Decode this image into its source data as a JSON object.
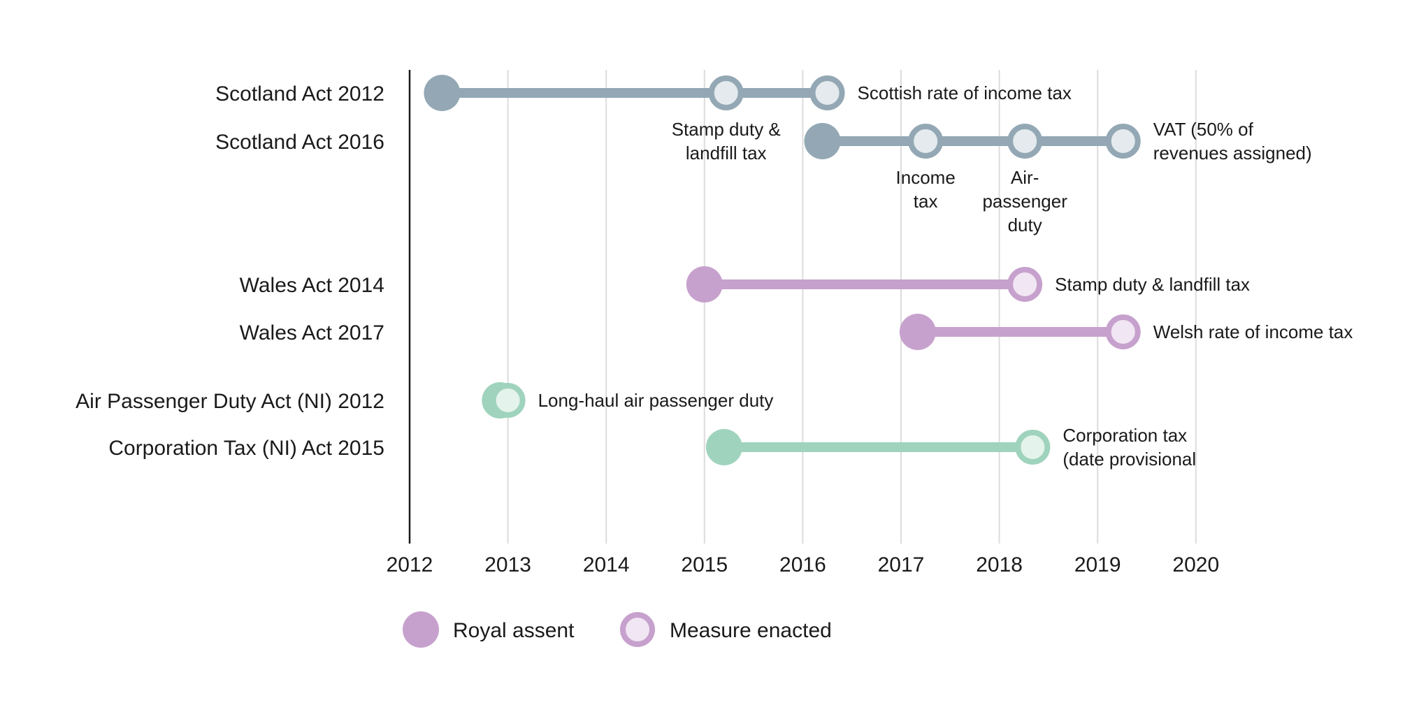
{
  "chart_data": {
    "type": "timeline",
    "title": "",
    "xlabel": "",
    "ylabel": "",
    "xlim": [
      2012,
      2020.5
    ],
    "x_ticks": [
      "2012",
      "2013",
      "2014",
      "2015",
      "2016",
      "2017",
      "2018",
      "2019",
      "2020"
    ],
    "grid": true,
    "colors": {
      "scotland": "#93a8b4",
      "scotland_fill": "#e4eaed",
      "wales": "#c7a1cd",
      "wales_fill": "#f1e6f3",
      "ni": "#9fd3bd",
      "ni_fill": "#e4f3ec",
      "axis": "#1a1a1a",
      "grid": "#dcdcdc"
    },
    "series": [
      {
        "name": "Scotland Act 2012",
        "group": "scotland",
        "royal_assent": 2012.33,
        "measures": [
          {
            "date": 2015.22,
            "label": [
              "Stamp duty &",
              "landfill tax"
            ],
            "label_pos": "below"
          },
          {
            "date": 2016.25,
            "label": [
              "Scottish rate of income tax"
            ],
            "label_pos": "right"
          }
        ]
      },
      {
        "name": "Scotland Act 2016",
        "group": "scotland",
        "royal_assent": 2016.2,
        "measures": [
          {
            "date": 2017.25,
            "label": [
              "Income",
              "tax"
            ],
            "label_pos": "below"
          },
          {
            "date": 2018.26,
            "label": [
              "Air-",
              "passenger",
              "duty"
            ],
            "label_pos": "below"
          },
          {
            "date": 2019.26,
            "label": [
              "VAT (50% of",
              "revenues assigned)"
            ],
            "label_pos": "right"
          }
        ]
      },
      {
        "name": "Wales Act 2014",
        "group": "wales",
        "royal_assent": 2015.0,
        "measures": [
          {
            "date": 2018.26,
            "label": [
              "Stamp duty & landfill tax"
            ],
            "label_pos": "right"
          }
        ]
      },
      {
        "name": "Wales Act 2017",
        "group": "wales",
        "royal_assent": 2017.17,
        "measures": [
          {
            "date": 2019.26,
            "label": [
              "Welsh rate of income tax"
            ],
            "label_pos": "right"
          }
        ]
      },
      {
        "name": "Air Passenger Duty Act (NI) 2012",
        "group": "ni",
        "royal_assent": 2012.92,
        "measures": [
          {
            "date": 2013.0,
            "label": [
              "Long-haul air passenger duty"
            ],
            "label_pos": "right"
          }
        ]
      },
      {
        "name": "Corporation Tax (NI) Act 2015",
        "group": "ni",
        "royal_assent": 2015.2,
        "measures": [
          {
            "date": 2018.34,
            "label": [
              "Corporation tax",
              "(date provisional"
            ],
            "label_pos": "right"
          }
        ]
      }
    ],
    "legend": {
      "position": "bottom-left",
      "items": [
        {
          "kind": "royal_assent",
          "label": "Royal assent"
        },
        {
          "kind": "measure_enacted",
          "label": "Measure enacted"
        }
      ]
    }
  }
}
